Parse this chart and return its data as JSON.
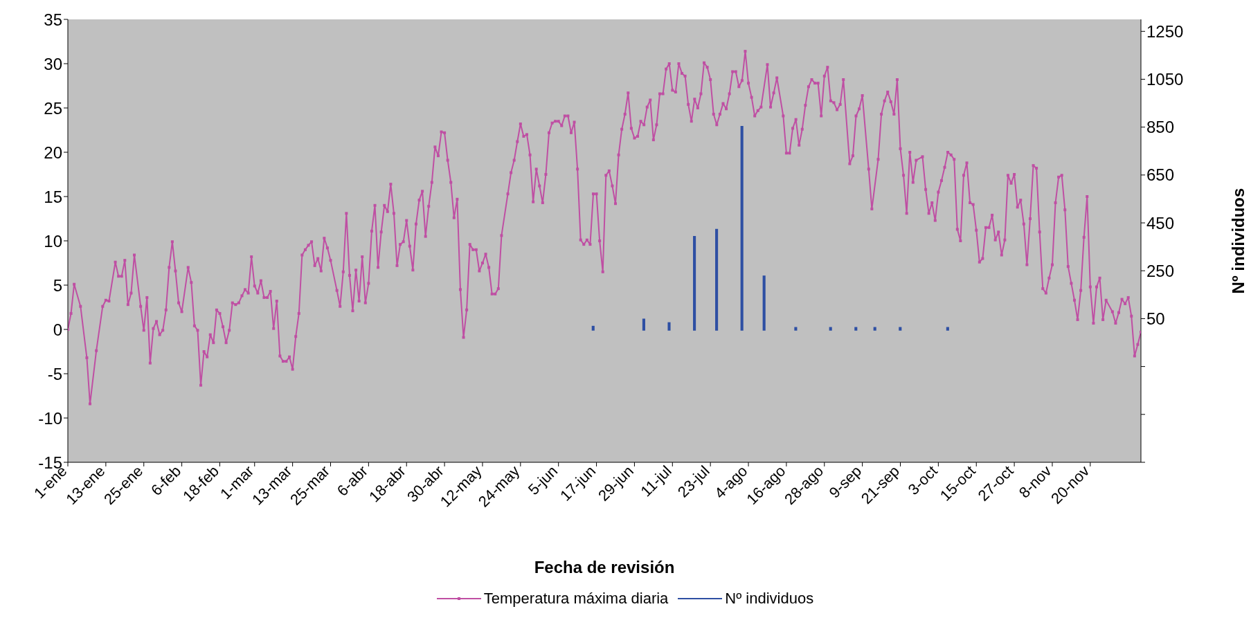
{
  "chart_data": {
    "type": "line",
    "xlabel": "Fecha de revisión",
    "y2label": "Nº individuos",
    "legend": "bottom",
    "marker": "square",
    "xlim": [
      "--01-01",
      "--12-06"
    ],
    "xticks": [
      {
        "value": "--01-01",
        "label": "1-ene"
      },
      {
        "value": "--01-13",
        "label": "13-ene"
      },
      {
        "value": "--01-25",
        "label": "25-ene"
      },
      {
        "value": "--02-06",
        "label": "6-feb"
      },
      {
        "value": "--02-18",
        "label": "18-feb"
      },
      {
        "value": "--03-01",
        "label": "1-mar"
      },
      {
        "value": "--03-13",
        "label": "13-mar"
      },
      {
        "value": "--03-25",
        "label": "25-mar"
      },
      {
        "value": "--04-06",
        "label": "6-abr"
      },
      {
        "value": "--04-18",
        "label": "18-abr"
      },
      {
        "value": "--04-30",
        "label": "30-abr"
      },
      {
        "value": "--05-12",
        "label": "12-may"
      },
      {
        "value": "--05-24",
        "label": "24-may"
      },
      {
        "value": "--06-05",
        "label": "5-jun"
      },
      {
        "value": "--06-17",
        "label": "17-jun"
      },
      {
        "value": "--06-29",
        "label": "29-jun"
      },
      {
        "value": "--07-11",
        "label": "11-jul"
      },
      {
        "value": "--07-23",
        "label": "23-jul"
      },
      {
        "value": "--08-04",
        "label": "4-ago"
      },
      {
        "value": "--08-16",
        "label": "16-ago"
      },
      {
        "value": "--08-28",
        "label": "28-ago"
      },
      {
        "value": "--09-09",
        "label": "9-sep"
      },
      {
        "value": "--09-21",
        "label": "21-sep"
      },
      {
        "value": "--10-03",
        "label": "3-oct"
      },
      {
        "value": "--10-15",
        "label": "15-oct"
      },
      {
        "value": "--10-27",
        "label": "27-oct"
      },
      {
        "value": "--11-08",
        "label": "8-nov"
      },
      {
        "value": "--11-20",
        "label": "20-nov"
      }
    ],
    "ylim": [
      -15,
      35
    ],
    "yticks": [
      -15,
      -10,
      -5,
      0,
      5,
      10,
      15,
      20,
      25,
      30,
      35
    ],
    "y2lim": [
      -550,
      1300
    ],
    "y2ticks": [
      {
        "value": -550,
        "label": null
      },
      {
        "value": -350,
        "label": null
      },
      {
        "value": -150,
        "label": null
      },
      50,
      250,
      450,
      650,
      850,
      1050,
      1250
    ],
    "series": [
      {
        "name": "Temperatura máxima diaria",
        "color": "#bf4fa3",
        "x": [
          "--01-01",
          "--01-02",
          "--01-03",
          "--01-05",
          "--01-07",
          "--01-08",
          "--01-10",
          "--01-12",
          "--01-13",
          "--01-14",
          "--01-16",
          "--01-17",
          "--01-18",
          "--01-19",
          "--01-20",
          "--01-21",
          "--01-22",
          "--01-24",
          "--01-25",
          "--01-26",
          "--01-27",
          "--01-28",
          "--01-29",
          "--01-30",
          "--01-31",
          "--02-01",
          "--02-02",
          "--02-03",
          "--02-04",
          "--02-05",
          "--02-06",
          "--02-08",
          "--02-09",
          "--02-10",
          "--02-11",
          "--02-12",
          "--02-13",
          "--02-14",
          "--02-15",
          "--02-16",
          "--02-17",
          "--02-18",
          "--02-19",
          "--02-20",
          "--02-21",
          "--02-22",
          "--02-23",
          "--02-24",
          "--02-25",
          "--02-26",
          "--02-27",
          "--02-28",
          "--03-01",
          "--03-02",
          "--03-03",
          "--03-04",
          "--03-05",
          "--03-06",
          "--03-07",
          "--03-08",
          "--03-09",
          "--03-10",
          "--03-11",
          "--03-12",
          "--03-13",
          "--03-14",
          "--03-15",
          "--03-16",
          "--03-17",
          "--03-18",
          "--03-19",
          "--03-20",
          "--03-21",
          "--03-22",
          "--03-23",
          "--03-24",
          "--03-25",
          "--03-27",
          "--03-28",
          "--03-29",
          "--03-30",
          "--03-31",
          "--04-01",
          "--04-02",
          "--04-03",
          "--04-04",
          "--04-05",
          "--04-06",
          "--04-07",
          "--04-08",
          "--04-09",
          "--04-10",
          "--04-11",
          "--04-12",
          "--04-13",
          "--04-14",
          "--04-15",
          "--04-16",
          "--04-17",
          "--04-18",
          "--04-19",
          "--04-20",
          "--04-21",
          "--04-22",
          "--04-23",
          "--04-24",
          "--04-25",
          "--04-26",
          "--04-27",
          "--04-28",
          "--04-29",
          "--04-30",
          "--05-01",
          "--05-02",
          "--05-03",
          "--05-04",
          "--05-05",
          "--05-06",
          "--05-07",
          "--05-08",
          "--05-09",
          "--05-10",
          "--05-11",
          "--05-12",
          "--05-13",
          "--05-14",
          "--05-15",
          "--05-16",
          "--05-17",
          "--05-18",
          "--05-20",
          "--05-21",
          "--05-22",
          "--05-23",
          "--05-24",
          "--05-25",
          "--05-26",
          "--05-27",
          "--05-28",
          "--05-29",
          "--05-30",
          "--05-31",
          "--06-01",
          "--06-02",
          "--06-03",
          "--06-04",
          "--06-05",
          "--06-06",
          "--06-07",
          "--06-08",
          "--06-09",
          "--06-10",
          "--06-11",
          "--06-12",
          "--06-13",
          "--06-14",
          "--06-15",
          "--06-16",
          "--06-17",
          "--06-18",
          "--06-19",
          "--06-20",
          "--06-21",
          "--06-22",
          "--06-23",
          "--06-24",
          "--06-25",
          "--06-26",
          "--06-27",
          "--06-28",
          "--06-29",
          "--06-30",
          "--07-01",
          "--07-02",
          "--07-03",
          "--07-04",
          "--07-05",
          "--07-06",
          "--07-07",
          "--07-08",
          "--07-09",
          "--07-10",
          "--07-11",
          "--07-12",
          "--07-13",
          "--07-14",
          "--07-15",
          "--07-16",
          "--07-17",
          "--07-18",
          "--07-19",
          "--07-20",
          "--07-21",
          "--07-22",
          "--07-23",
          "--07-24",
          "--07-25",
          "--07-26",
          "--07-27",
          "--07-28",
          "--07-29",
          "--07-30",
          "--07-31",
          "--08-01",
          "--08-02",
          "--08-03",
          "--08-04",
          "--08-05",
          "--08-06",
          "--08-07",
          "--08-08",
          "--08-10",
          "--08-11",
          "--08-12",
          "--08-13",
          "--08-15",
          "--08-16",
          "--08-17",
          "--08-18",
          "--08-19",
          "--08-20",
          "--08-21",
          "--08-22",
          "--08-23",
          "--08-24",
          "--08-25",
          "--08-26",
          "--08-27",
          "--08-28",
          "--08-29",
          "--08-30",
          "--08-31",
          "--09-01",
          "--09-02",
          "--09-03",
          "--09-05",
          "--09-06",
          "--09-07",
          "--09-08",
          "--09-09",
          "--09-11",
          "--09-12",
          "--09-14",
          "--09-15",
          "--09-16",
          "--09-17",
          "--09-18",
          "--09-19",
          "--09-20",
          "--09-21",
          "--09-22",
          "--09-23",
          "--09-24",
          "--09-25",
          "--09-26",
          "--09-28",
          "--09-29",
          "--09-30",
          "--10-01",
          "--10-02",
          "--10-03",
          "--10-04",
          "--10-05",
          "--10-06",
          "--10-07",
          "--10-08",
          "--10-09",
          "--10-10",
          "--10-11",
          "--10-12",
          "--10-13",
          "--10-14",
          "--10-15",
          "--10-16",
          "--10-17",
          "--10-18",
          "--10-19",
          "--10-20",
          "--10-21",
          "--10-22",
          "--10-23",
          "--10-24",
          "--10-25",
          "--10-26",
          "--10-27",
          "--10-28",
          "--10-29",
          "--10-30",
          "--10-31",
          "--11-01",
          "--11-02",
          "--11-03",
          "--11-04",
          "--11-05",
          "--11-06",
          "--11-07",
          "--11-08",
          "--11-09",
          "--11-10",
          "--11-11",
          "--11-12",
          "--11-13",
          "--11-14",
          "--11-15",
          "--11-16",
          "--11-17",
          "--11-18",
          "--11-19",
          "--11-20",
          "--11-21",
          "--11-22",
          "--11-23",
          "--11-24",
          "--11-25",
          "--11-27",
          "--11-28",
          "--11-29",
          "--11-30",
          "--12-01",
          "--12-02",
          "--12-03",
          "--12-04",
          "--12-05",
          "--12-06"
        ],
        "values": [
          0,
          1.8,
          5.1,
          2.6,
          -3.2,
          -8.4,
          -2.4,
          2.6,
          3.3,
          3.2,
          7.6,
          6.0,
          6.0,
          7.8,
          2.8,
          4.1,
          8.4,
          2.6,
          -0.1,
          3.6,
          -3.8,
          0.1,
          0.9,
          -0.6,
          -0.1,
          2.2,
          7.0,
          9.9,
          6.6,
          3.0,
          2.0,
          7.0,
          5.3,
          0.4,
          -0.1,
          -6.3,
          -2.5,
          -3.1,
          -0.6,
          -1.5,
          2.2,
          1.8,
          0.3,
          -1.5,
          -0.1,
          3.0,
          2.8,
          3.0,
          3.8,
          4.5,
          4.1,
          8.2,
          4.9,
          4.1,
          5.5,
          3.6,
          3.6,
          4.3,
          0.1,
          3.2,
          -3.0,
          -3.6,
          -3.6,
          -3.1,
          -4.5,
          -0.8,
          1.8,
          8.4,
          9.0,
          9.5,
          9.9,
          7.2,
          8.0,
          6.6,
          10.3,
          9.2,
          7.8,
          4.4,
          2.6,
          6.5,
          13.1,
          6.1,
          2.1,
          6.7,
          3.2,
          8.2,
          3.0,
          5.2,
          11.1,
          14.0,
          7.0,
          11.0,
          14.0,
          13.3,
          16.4,
          13.1,
          7.2,
          9.6,
          9.9,
          12.3,
          9.4,
          6.7,
          11.9,
          14.6,
          15.6,
          10.5,
          13.9,
          16.6,
          20.6,
          19.6,
          22.3,
          22.2,
          19.1,
          16.6,
          12.6,
          14.7,
          4.5,
          -0.9,
          2.2,
          9.6,
          9.0,
          9.0,
          6.6,
          7.5,
          8.5,
          7.0,
          4.0,
          4.0,
          4.6,
          10.6,
          15.3,
          17.7,
          19.1,
          21.2,
          23.2,
          21.8,
          22.0,
          19.7,
          14.4,
          18.1,
          16.2,
          14.3,
          17.5,
          22.2,
          23.3,
          23.5,
          23.5,
          23.0,
          24.1,
          24.1,
          22.2,
          23.4,
          18.1,
          10.1,
          9.6,
          10.1,
          9.6,
          15.3,
          15.3,
          10.0,
          6.5,
          17.4,
          17.9,
          16.2,
          14.2,
          19.7,
          22.6,
          24.3,
          26.7,
          22.7,
          21.6,
          21.8,
          23.5,
          23.1,
          25.1,
          25.9,
          21.4,
          23.1,
          26.6,
          26.6,
          29.4,
          30.0,
          27.0,
          26.8,
          30.0,
          28.9,
          28.6,
          25.4,
          23.5,
          26.0,
          25.0,
          26.6,
          30.1,
          29.6,
          28.2,
          24.3,
          23.1,
          24.3,
          25.5,
          24.9,
          26.6,
          29.1,
          29.1,
          27.4,
          28.1,
          31.4,
          27.8,
          26.2,
          24.1,
          24.7,
          25.1,
          29.9,
          25.1,
          26.7,
          28.4,
          24.1,
          19.9,
          19.9,
          22.7,
          23.7,
          20.8,
          22.6,
          25.3,
          27.4,
          28.2,
          27.8,
          27.8,
          24.1,
          28.6,
          29.6,
          25.8,
          25.6,
          24.8,
          25.4,
          28.2,
          18.7,
          19.6,
          24.1,
          24.9,
          26.4,
          18.1,
          13.6,
          19.2,
          24.3,
          25.8,
          26.8,
          25.7,
          24.3,
          28.2,
          20.4,
          17.4,
          13.1,
          20.0,
          16.6,
          19.1,
          19.5,
          15.8,
          13.1,
          14.3,
          12.3,
          15.5,
          16.8,
          18.3,
          20.0,
          19.7,
          19.2,
          11.3,
          10.0,
          17.4,
          18.8,
          14.3,
          14.1,
          11.2,
          7.6,
          8.0,
          11.5,
          11.5,
          12.9,
          10.1,
          11.0,
          8.4,
          10.1,
          17.4,
          16.5,
          17.5,
          13.8,
          14.6,
          11.9,
          7.3,
          12.5,
          18.5,
          18.2,
          11.0,
          4.6,
          4.1,
          5.8,
          7.3,
          14.3,
          17.2,
          17.4,
          13.5,
          7.1,
          5.2,
          3.3,
          1.1,
          4.4,
          10.4,
          15.0,
          4.8,
          0.7,
          4.8,
          5.8,
          1.1,
          3.3,
          2.0,
          0.7,
          1.9,
          3.4,
          2.9,
          3.6,
          1.5,
          -3.0,
          -1.7,
          -0.3
        ]
      },
      {
        "name": "Nº individuos",
        "type": "bar",
        "axis": "y2",
        "color": "#2e4fa3",
        "x": [
          "--06-16",
          "--07-02",
          "--07-10",
          "--07-18",
          "--07-25",
          "--08-02",
          "--08-09",
          "--08-19",
          "--08-30",
          "--09-07",
          "--09-13",
          "--09-21",
          "--10-06"
        ],
        "values": [
          20,
          50,
          35,
          395,
          425,
          855,
          230,
          15,
          15,
          15,
          15,
          15,
          15
        ]
      }
    ]
  }
}
